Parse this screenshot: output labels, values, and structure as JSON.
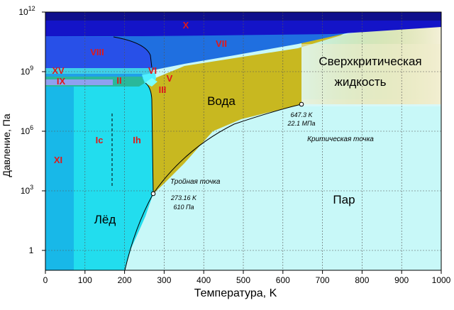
{
  "chart_data": {
    "type": "area",
    "title": "",
    "xlabel": "Температура, K",
    "ylabel": "Давление, Па",
    "xlim": [
      0,
      1000
    ],
    "ylim_log10": [
      -1,
      12
    ],
    "x_ticks": [
      "0",
      "100",
      "200",
      "300",
      "400",
      "500",
      "600",
      "700",
      "800",
      "900",
      "1000"
    ],
    "y_ticks": [
      {
        "exp": 0,
        "label": "1"
      },
      {
        "exp": 3,
        "label": "10",
        "sup": "3"
      },
      {
        "exp": 6,
        "label": "10",
        "sup": "6"
      },
      {
        "exp": 9,
        "label": "10",
        "sup": "9"
      },
      {
        "exp": 12,
        "label": "10",
        "sup": "12"
      }
    ],
    "grid": true,
    "phases": [
      {
        "name": "Лёд",
        "color": "#22ddee"
      },
      {
        "name": "Вода",
        "color": "#c8b820"
      },
      {
        "name": "Пар",
        "color": "#c8f8f8"
      },
      {
        "name": "Сверхкритическая жидкость",
        "color": "#f0eccc"
      }
    ],
    "ice_labels": [
      "X",
      "VII",
      "VIII",
      "XV",
      "VI",
      "IX",
      "II",
      "V",
      "III",
      "XI",
      "Ic",
      "Ih"
    ],
    "boundary_points": {
      "sublimation": [
        [
          190,
          -1
        ],
        [
          210,
          1
        ],
        [
          240,
          2
        ],
        [
          273.16,
          2.785
        ]
      ],
      "vaporization": [
        [
          273.16,
          2.785
        ],
        [
          350,
          4.6
        ],
        [
          450,
          5.9
        ],
        [
          550,
          6.6
        ],
        [
          647.3,
          7.344
        ]
      ],
      "melting": [
        [
          273.16,
          2.785
        ],
        [
          272,
          6
        ],
        [
          270,
          7.5
        ],
        [
          265,
          8.0
        ],
        [
          251,
          8.3
        ]
      ]
    },
    "triple_point": {
      "T": 273.16,
      "P": 610,
      "title": "Тройная точка",
      "line1": "273.16 K",
      "line2": "610 Па"
    },
    "critical_point": {
      "T": 647.3,
      "P": 22100000,
      "title": "Критическая точка",
      "line1": "647.3 K",
      "line2": "22.1 МПа"
    }
  },
  "labels": {
    "water": "Вода",
    "vapor": "Пар",
    "ice": "Лёд",
    "supercritical_line1": "Сверхкритическая",
    "supercritical_line2": "жидкость"
  }
}
